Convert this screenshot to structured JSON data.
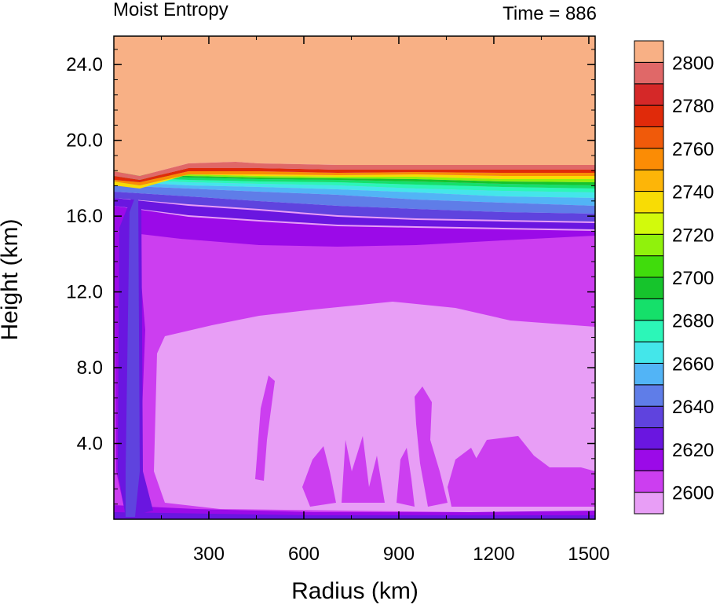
{
  "chart_data": {
    "type": "heatmap",
    "title": "Moist Entropy",
    "subtitle": "Time = 886",
    "xlabel": "Radius (km)",
    "ylabel": "Height (km)",
    "xlim": [
      0,
      1520
    ],
    "ylim": [
      0,
      25.5
    ],
    "xticks": [
      {
        "value": 300,
        "label": "300"
      },
      {
        "value": 600,
        "label": "600"
      },
      {
        "value": 900,
        "label": "900"
      },
      {
        "value": 1200,
        "label": "1200"
      },
      {
        "value": 1500,
        "label": "1500"
      }
    ],
    "yticks": [
      {
        "value": 4,
        "label": "4.0"
      },
      {
        "value": 8,
        "label": "8.0"
      },
      {
        "value": 12,
        "label": "12.0"
      },
      {
        "value": 16,
        "label": "16.0"
      },
      {
        "value": 20,
        "label": "20.0"
      },
      {
        "value": 24,
        "label": "24.0"
      }
    ],
    "colorbar": {
      "colors": [
        "#e89ef6",
        "#cc3ef0",
        "#9b0ae8",
        "#6a16e0",
        "#5f43de",
        "#5f7de8",
        "#52b4f6",
        "#44e6ea",
        "#2cf6b8",
        "#15e06a",
        "#16c42c",
        "#40dc0c",
        "#90f20c",
        "#d2fa0c",
        "#f8dc05",
        "#fdb508",
        "#fb8c05",
        "#f05a0a",
        "#e02a0a",
        "#d52828",
        "#e06868",
        "#f8b085"
      ],
      "labels": [
        {
          "value": 2600,
          "label": "2600"
        },
        {
          "value": 2620,
          "label": "2620"
        },
        {
          "value": 2640,
          "label": "2640"
        },
        {
          "value": 2660,
          "label": "2660"
        },
        {
          "value": 2680,
          "label": "2680"
        },
        {
          "value": 2700,
          "label": "2700"
        },
        {
          "value": 2720,
          "label": "2720"
        },
        {
          "value": 2740,
          "label": "2740"
        },
        {
          "value": 2760,
          "label": "2760"
        },
        {
          "value": 2780,
          "label": "2780"
        },
        {
          "value": 2800,
          "label": "2800"
        }
      ]
    }
  }
}
